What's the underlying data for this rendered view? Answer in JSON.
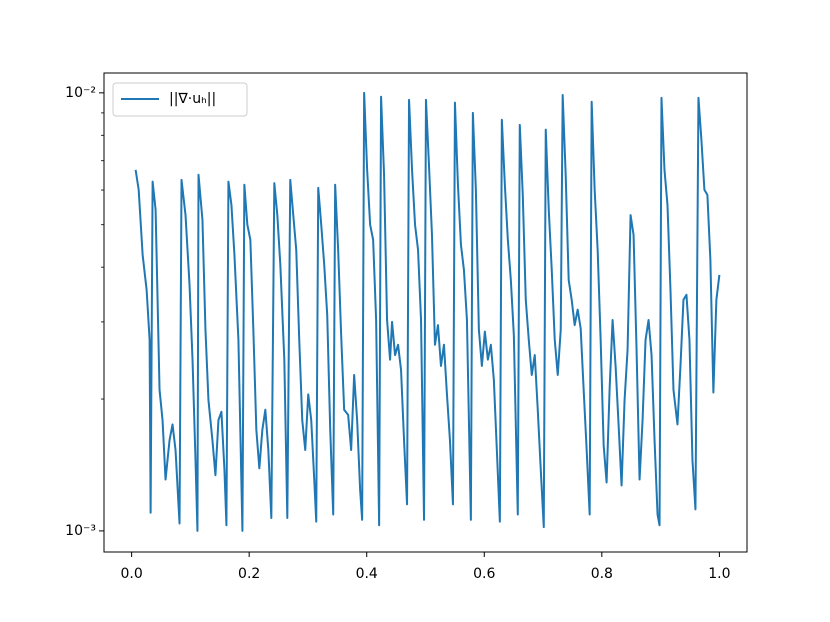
{
  "chart_data": {
    "type": "line",
    "series": [
      {
        "name": "||∇·uₕ||",
        "color": "#1f77b4",
        "x": [
          0.0068,
          0.012,
          0.0187,
          0.0255,
          0.0306,
          0.0323,
          0.0357,
          0.0408,
          0.0475,
          0.0526,
          0.0577,
          0.0645,
          0.0696,
          0.0747,
          0.0815,
          0.0849,
          0.0917,
          0.0985,
          0.1036,
          0.1087,
          0.112,
          0.1138,
          0.1205,
          0.1256,
          0.1307,
          0.1375,
          0.1426,
          0.1477,
          0.1528,
          0.1579,
          0.1613,
          0.1647,
          0.1698,
          0.1749,
          0.1817,
          0.1885,
          0.1918,
          0.1969,
          0.202,
          0.2071,
          0.2122,
          0.2173,
          0.2224,
          0.2275,
          0.2326,
          0.2377,
          0.2428,
          0.2479,
          0.253,
          0.2598,
          0.2649,
          0.2699,
          0.275,
          0.2801,
          0.2852,
          0.2903,
          0.2954,
          0.3005,
          0.3056,
          0.3107,
          0.3141,
          0.3175,
          0.3226,
          0.3277,
          0.3328,
          0.3379,
          0.343,
          0.3463,
          0.3514,
          0.3565,
          0.3616,
          0.3684,
          0.3735,
          0.3786,
          0.3837,
          0.3888,
          0.3922,
          0.3956,
          0.4007,
          0.4058,
          0.4109,
          0.416,
          0.4211,
          0.4244,
          0.4295,
          0.4346,
          0.4397,
          0.4431,
          0.4482,
          0.4533,
          0.4584,
          0.4635,
          0.4686,
          0.472,
          0.4771,
          0.4822,
          0.4873,
          0.4924,
          0.4975,
          0.5008,
          0.5059,
          0.511,
          0.5161,
          0.5212,
          0.5263,
          0.5314,
          0.5365,
          0.5416,
          0.5467,
          0.5501,
          0.5552,
          0.5603,
          0.5654,
          0.5705,
          0.5772,
          0.5806,
          0.5857,
          0.5908,
          0.5959,
          0.601,
          0.6061,
          0.6112,
          0.6163,
          0.6214,
          0.6265,
          0.6299,
          0.635,
          0.6401,
          0.6452,
          0.6503,
          0.657,
          0.6604,
          0.6655,
          0.6706,
          0.6757,
          0.6808,
          0.6859,
          0.691,
          0.6961,
          0.7012,
          0.7046,
          0.7097,
          0.7148,
          0.7199,
          0.725,
          0.7301,
          0.7334,
          0.7385,
          0.7436,
          0.7487,
          0.7538,
          0.7589,
          0.764,
          0.7691,
          0.7742,
          0.7793,
          0.7827,
          0.7878,
          0.7929,
          0.798,
          0.8031,
          0.8081,
          0.8132,
          0.8183,
          0.8234,
          0.8285,
          0.8336,
          0.8387,
          0.8438,
          0.8489,
          0.854,
          0.8591,
          0.8642,
          0.8693,
          0.8744,
          0.8795,
          0.8846,
          0.8897,
          0.8948,
          0.8982,
          0.9015,
          0.9066,
          0.9117,
          0.9168,
          0.9219,
          0.9287,
          0.9338,
          0.9389,
          0.944,
          0.9491,
          0.9542,
          0.9593,
          0.9644,
          0.9694,
          0.9745,
          0.9796,
          0.9847,
          0.9898,
          0.9949,
          1.0
        ],
        "values": [
          0.00667,
          0.00601,
          0.00427,
          0.00355,
          0.00273,
          0.0011,
          0.00627,
          0.00541,
          0.0021,
          0.00179,
          0.00131,
          0.00161,
          0.00175,
          0.00153,
          0.00104,
          0.00633,
          0.00526,
          0.00365,
          0.00246,
          0.00145,
          0.001,
          0.0065,
          0.00513,
          0.00288,
          0.00199,
          0.00161,
          0.00134,
          0.00179,
          0.00187,
          0.00138,
          0.00103,
          0.00627,
          0.00555,
          0.00427,
          0.00273,
          0.001,
          0.00617,
          0.005,
          0.00462,
          0.00288,
          0.0017,
          0.00139,
          0.0017,
          0.00189,
          0.00153,
          0.00107,
          0.00622,
          0.00526,
          0.00405,
          0.00246,
          0.00107,
          0.00633,
          0.00526,
          0.00438,
          0.00273,
          0.00179,
          0.00153,
          0.00205,
          0.00179,
          0.00131,
          0.00105,
          0.00607,
          0.005,
          0.00405,
          0.00311,
          0.0017,
          0.00109,
          0.00617,
          0.00438,
          0.0028,
          0.00189,
          0.00184,
          0.00153,
          0.00227,
          0.00179,
          0.00124,
          0.00106,
          0.01,
          0.00667,
          0.005,
          0.00462,
          0.00303,
          0.00103,
          0.0098,
          0.0065,
          0.00303,
          0.00246,
          0.003,
          0.00252,
          0.00266,
          0.00233,
          0.00161,
          0.00115,
          0.00964,
          0.00667,
          0.005,
          0.00438,
          0.00303,
          0.00106,
          0.00964,
          0.00685,
          0.00474,
          0.00266,
          0.00295,
          0.00238,
          0.00266,
          0.00205,
          0.00161,
          0.00115,
          0.0095,
          0.00617,
          0.0045,
          0.00394,
          0.00303,
          0.00106,
          0.009,
          0.00601,
          0.00288,
          0.00238,
          0.00285,
          0.00246,
          0.00266,
          0.00221,
          0.00153,
          0.00105,
          0.00868,
          0.00617,
          0.00462,
          0.00374,
          0.0028,
          0.00109,
          0.00845,
          0.00585,
          0.00337,
          0.00273,
          0.00227,
          0.00252,
          0.00189,
          0.00138,
          0.00102,
          0.00824,
          0.00541,
          0.00394,
          0.00273,
          0.00227,
          0.00288,
          0.00989,
          0.0065,
          0.00374,
          0.00337,
          0.00295,
          0.0032,
          0.0029,
          0.0021,
          0.00153,
          0.00109,
          0.00954,
          0.00601,
          0.00438,
          0.00273,
          0.00157,
          0.00129,
          0.0021,
          0.00303,
          0.00238,
          0.00175,
          0.00127,
          0.00199,
          0.00259,
          0.00526,
          0.00474,
          0.00259,
          0.00131,
          0.00179,
          0.00273,
          0.00303,
          0.00252,
          0.00161,
          0.00109,
          0.00103,
          0.00974,
          0.00667,
          0.00555,
          0.00355,
          0.0021,
          0.00175,
          0.00238,
          0.00337,
          0.00346,
          0.00273,
          0.00145,
          0.00112,
          0.00974,
          0.00782,
          0.00601,
          0.00585,
          0.00416,
          0.00207,
          0.00337,
          0.00384
        ]
      }
    ],
    "xlim": [
      -0.047,
      1.047
    ],
    "xticks": [
      {
        "value": 0,
        "label": "0.0"
      },
      0.2,
      0.4,
      0.6,
      0.8,
      {
        "value": 1,
        "label": "1.0"
      }
    ],
    "ylim": [
      0.000895,
      0.0111
    ],
    "ylog": true,
    "yticks": [
      {
        "value": 0.001,
        "label": "10⁻³"
      },
      {
        "value": 0.01,
        "label": "10⁻²"
      }
    ],
    "yminorticks": [
      0.002,
      0.003,
      0.004,
      0.005,
      0.006,
      0.007,
      0.008,
      0.009
    ],
    "legend": "upper left"
  }
}
